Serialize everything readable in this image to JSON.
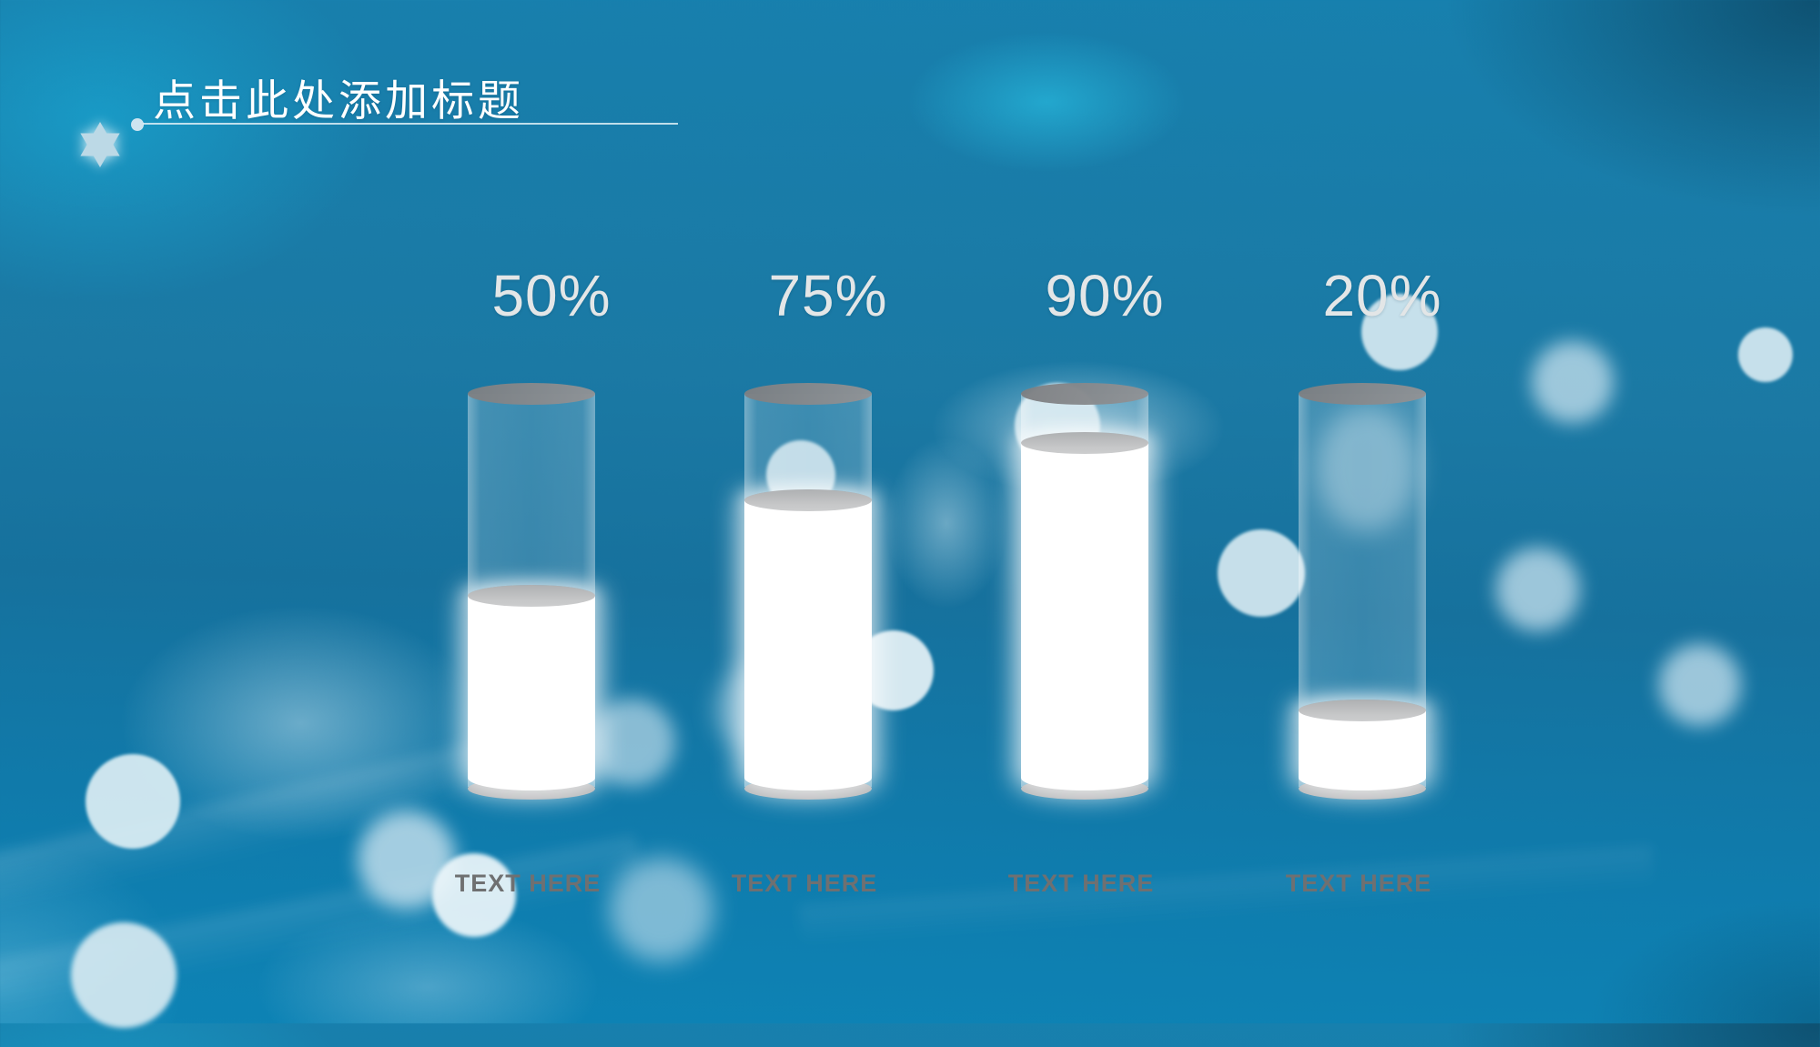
{
  "slide_title": {
    "text": "点击此处添加标题"
  },
  "chart_data": {
    "type": "bar",
    "subtype": "cylinder-fill-percentage",
    "title": "点击此处添加标题",
    "categories": [
      "TEXT HERE",
      "TEXT HERE",
      "TEXT HERE",
      "TEXT HERE"
    ],
    "values": [
      50,
      75,
      90,
      20
    ],
    "value_labels": [
      "50%",
      "75%",
      "90%",
      "20%"
    ],
    "ylim": [
      0,
      100
    ],
    "legend": false,
    "gridlines": false
  },
  "colors": {
    "value_label": "#e3e6e7",
    "caption_label": "#6f7071",
    "title_text": "#ffffff",
    "cylinder_fill": "#ffffff",
    "cylinder_cap": "#87898c",
    "bokeh_accent": "#d5e9f1",
    "background_top_left": "#18a5d3",
    "background_top_right": "#174f6b",
    "background_bottom": "#0d83b5"
  }
}
